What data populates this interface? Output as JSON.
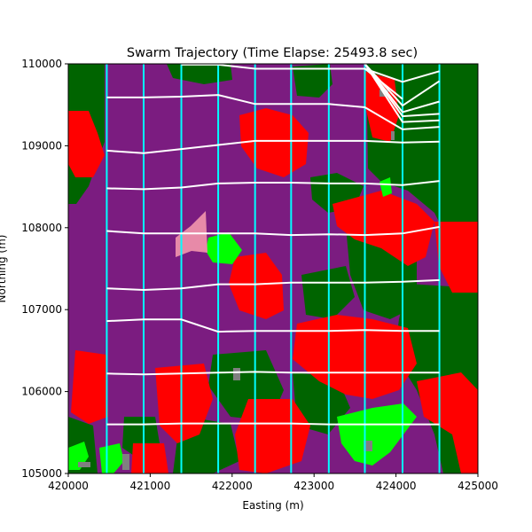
{
  "chart_data": {
    "type": "line",
    "title": "Swarm Trajectory (Time Elapse: 25493.8 sec)",
    "xlabel": "Easting (m)",
    "ylabel": "Northing (m)",
    "xlim": [
      420000,
      425000
    ],
    "ylim": [
      105000,
      110000
    ],
    "xticks": [
      420000,
      421000,
      422000,
      423000,
      424000,
      425000
    ],
    "yticks": [
      105000,
      106000,
      107000,
      108000,
      109000,
      110000
    ],
    "xtick_labels": [
      "420000",
      "421000",
      "422000",
      "423000",
      "424000",
      "425000"
    ],
    "ytick_labels": [
      "105000",
      "106000",
      "107000",
      "108000",
      "109000",
      "110000"
    ],
    "grid": false,
    "legend": "none",
    "colors": {
      "background": "#7b1c80",
      "forest": "#006400",
      "red": "#ff0000",
      "green": "#00ff00",
      "pink": "#e78aa8",
      "gray": "#808080",
      "vertical_track": "#00ffff",
      "trajectory": "#ffffff"
    },
    "vertical_tracks_x": [
      420470,
      420920,
      421380,
      421830,
      422280,
      422720,
      423180,
      423620,
      424080,
      424530
    ],
    "series": [
      {
        "x": [
          420470,
          420920,
          421380,
          421830,
          422280,
          422720,
          423180,
          423620,
          424080,
          424530
        ],
        "y": [
          105600,
          105600,
          105610,
          105610,
          105610,
          105610,
          105600,
          105600,
          105600,
          105600
        ]
      },
      {
        "x": [
          420470,
          420920,
          421380,
          421830,
          422280,
          422720,
          423180,
          423620,
          424080,
          424530
        ],
        "y": [
          106220,
          106210,
          106220,
          106230,
          106240,
          106230,
          106230,
          106230,
          106230,
          106230
        ]
      },
      {
        "x": [
          420470,
          420920,
          421380,
          421830,
          422280,
          422720,
          423180,
          423620,
          424080,
          424530
        ],
        "y": [
          106860,
          106880,
          106880,
          106730,
          106740,
          106740,
          106740,
          106750,
          106740,
          106740
        ]
      },
      {
        "x": [
          420470,
          420920,
          421380,
          421830,
          422280,
          422720,
          423180,
          423620,
          424080,
          424530
        ],
        "y": [
          107260,
          107240,
          107260,
          107310,
          107310,
          107330,
          107330,
          107330,
          107340,
          107360
        ]
      },
      {
        "x": [
          420470,
          420920,
          421380,
          421830,
          422280,
          422720,
          423180,
          423620,
          424080,
          424530
        ],
        "y": [
          107960,
          107930,
          107930,
          107930,
          107930,
          107910,
          107920,
          107910,
          107930,
          108010
        ]
      },
      {
        "x": [
          420470,
          420920,
          421380,
          421830,
          422280,
          422720,
          423180,
          423620,
          424080,
          424530
        ],
        "y": [
          108480,
          108470,
          108490,
          108540,
          108550,
          108550,
          108540,
          108540,
          108520,
          108570
        ]
      },
      {
        "x": [
          420470,
          420920,
          421380,
          421830,
          422280,
          422720,
          423180,
          423620,
          424080,
          424530
        ],
        "y": [
          108940,
          108910,
          108960,
          109010,
          109060,
          109060,
          109060,
          109060,
          109040,
          109050
        ]
      },
      {
        "x": [
          420470,
          420920,
          421380,
          421830,
          422280,
          422720,
          423180,
          423620,
          424080,
          424530
        ],
        "y": [
          109590,
          109590,
          109600,
          109620,
          109510,
          109510,
          109510,
          109470,
          109200,
          109230
        ]
      },
      {
        "x": [
          421380,
          421830,
          422280,
          422720,
          423180,
          423620,
          424080,
          424530
        ],
        "y": [
          109990,
          109990,
          109940,
          109940,
          109940,
          109940,
          109780,
          109910
        ]
      },
      {
        "x": [
          423620,
          424080
        ],
        "y": [
          109940,
          109570
        ]
      },
      {
        "x": [
          423620,
          424080,
          424530
        ],
        "y": [
          110000,
          109490,
          109790
        ]
      },
      {
        "x": [
          423620,
          424080,
          424530
        ],
        "y": [
          110000,
          109410,
          109540
        ]
      },
      {
        "x": [
          423620,
          424080,
          424530
        ],
        "y": [
          110000,
          109360,
          109390
        ]
      },
      {
        "x": [
          423620,
          424080,
          424530
        ],
        "y": [
          110000,
          109290,
          109310
        ]
      }
    ]
  }
}
